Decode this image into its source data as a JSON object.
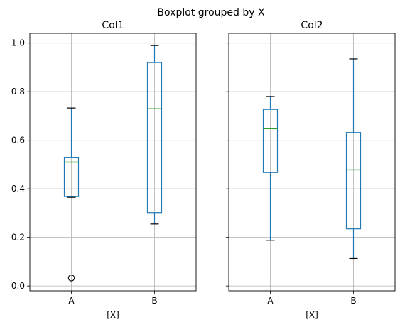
{
  "suptitle": "Boxplot grouped by X",
  "chart_data": [
    {
      "type": "box",
      "title": "Col1",
      "xlabel": "[X]",
      "ylabel": "",
      "categories": [
        "A",
        "B"
      ],
      "ylim": [
        -0.02,
        1.04
      ],
      "yticks": [
        "0.0",
        "0.2",
        "0.4",
        "0.6",
        "0.8",
        "1.0"
      ],
      "grid": true,
      "boxes": [
        {
          "label": "A",
          "whislo": 0.365,
          "q1": 0.368,
          "med": 0.51,
          "q3": 0.528,
          "whishi": 0.733,
          "fliers": [
            0.033
          ]
        },
        {
          "label": "B",
          "whislo": 0.255,
          "q1": 0.302,
          "med": 0.73,
          "q3": 0.92,
          "whishi": 0.99,
          "fliers": []
        }
      ]
    },
    {
      "type": "box",
      "title": "Col2",
      "xlabel": "[X]",
      "ylabel": "",
      "categories": [
        "A",
        "B"
      ],
      "ylim": [
        -0.02,
        1.04
      ],
      "yticks": [
        "",
        "",
        "",
        "",
        "",
        ""
      ],
      "grid": true,
      "boxes": [
        {
          "label": "A",
          "whislo": 0.188,
          "q1": 0.467,
          "med": 0.648,
          "q3": 0.727,
          "whishi": 0.78,
          "fliers": []
        },
        {
          "label": "B",
          "whislo": 0.113,
          "q1": 0.235,
          "med": 0.478,
          "q3": 0.632,
          "whishi": 0.935,
          "fliers": []
        }
      ]
    }
  ],
  "colors": {
    "box": "#1f77b4",
    "median": "#2ca02c",
    "grid": "#b0b0b0",
    "axes": "#000000"
  }
}
